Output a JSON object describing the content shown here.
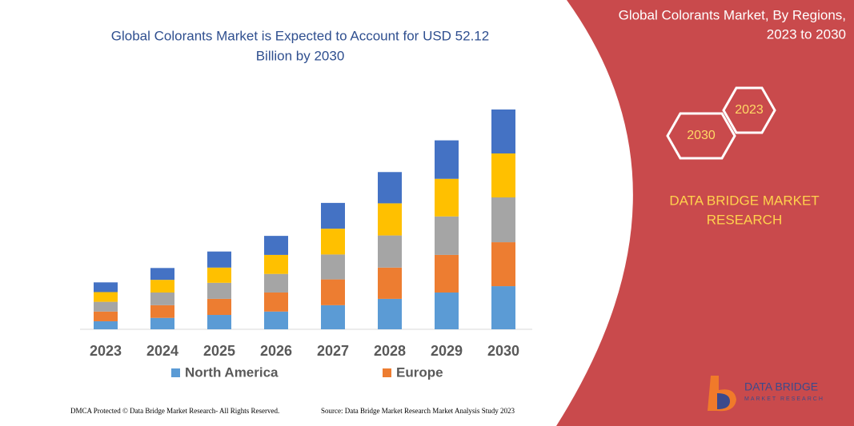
{
  "chart_data": {
    "type": "stacked-bar",
    "title": [
      "Global Colorants Market is Expected to Account for USD 52.12",
      "Billion by 2030"
    ],
    "categories": [
      "2023",
      "2024",
      "2025",
      "2026",
      "2027",
      "2028",
      "2029",
      "2030"
    ],
    "series": [
      {
        "name": "North America",
        "color": "#5b9bd5",
        "values": [
          1.9,
          2.7,
          3.4,
          4.2,
          5.7,
          7.2,
          8.7,
          10.2
        ]
      },
      {
        "name": "Europe",
        "color": "#ed7d31",
        "values": [
          2.3,
          3.0,
          3.8,
          4.5,
          6.1,
          7.4,
          8.9,
          10.4
        ]
      },
      {
        "color": "#a5a5a5",
        "values": [
          2.3,
          3.0,
          3.8,
          4.4,
          5.9,
          7.6,
          9.1,
          10.6
        ]
      },
      {
        "color": "#ffc000",
        "values": [
          2.3,
          3.0,
          3.6,
          4.5,
          6.1,
          7.6,
          8.9,
          10.4
        ]
      },
      {
        "color": "#4472c4",
        "values": [
          2.3,
          2.8,
          3.8,
          4.5,
          6.1,
          7.4,
          9.1,
          10.4
        ]
      }
    ],
    "ylim": [
      0,
      52
    ]
  },
  "panel": {
    "title": [
      "Global Colorants Market, By Regions,",
      "2023 to 2030"
    ],
    "hexagons": [
      "2023",
      "2030"
    ],
    "brand": [
      "DATA BRIDGE MARKET",
      "RESEARCH"
    ]
  },
  "logo": {
    "name": "DATA BRIDGE",
    "tagline": "MARKET RESEARCH"
  },
  "footer": {
    "left": "DMCA Protected © Data Bridge Market Research-  All Rights Reserved.",
    "right": "Source: Data Bridge Market Research  Market Analysis Study 2023"
  }
}
